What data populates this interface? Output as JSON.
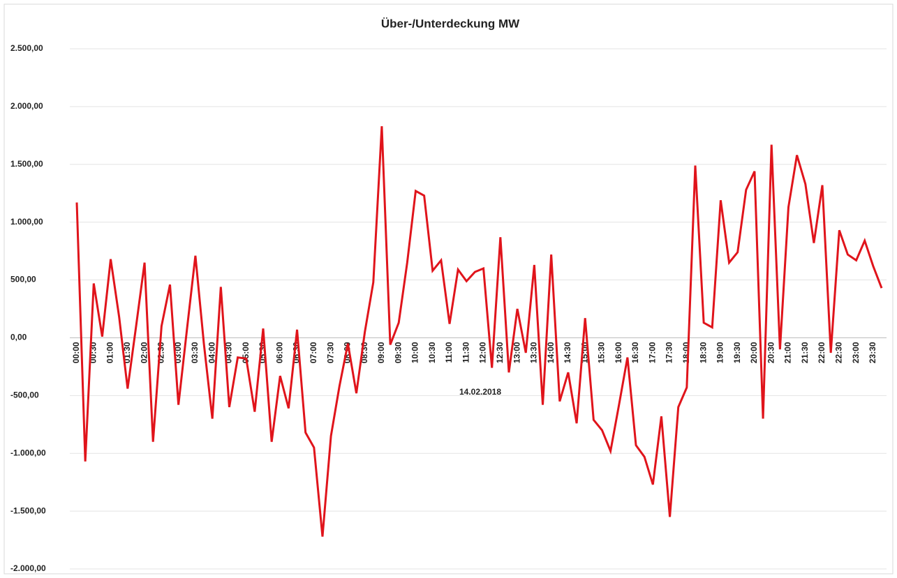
{
  "chart_data": {
    "type": "line",
    "title": "Über-/Unterdeckung  MW",
    "x_label": "14.02.2018",
    "categories": [
      "00:00",
      null,
      "00:30",
      null,
      "01:00",
      null,
      "01:30",
      null,
      "02:00",
      null,
      "02:30",
      null,
      "03:00",
      null,
      "03:30",
      null,
      "04:00",
      null,
      "04:30",
      null,
      "05:00",
      null,
      "05:30",
      null,
      "06:00",
      null,
      "06:30",
      null,
      "07:00",
      null,
      "07:30",
      null,
      "08:00",
      null,
      "08:30",
      null,
      "09:00",
      null,
      "09:30",
      null,
      "10:00",
      null,
      "10:30",
      null,
      "11:00",
      null,
      "11:30",
      null,
      "12:00",
      null,
      "12:30",
      null,
      "13:00",
      null,
      "13:30",
      null,
      "14:00",
      null,
      "14:30",
      null,
      "15:00",
      null,
      "15:30",
      null,
      "16:00",
      null,
      "16:30",
      null,
      "17:00",
      null,
      "17:30",
      null,
      "18:00",
      null,
      "18:30",
      null,
      "19:00",
      null,
      "19:30",
      null,
      "20:00",
      null,
      "20:30",
      null,
      "21:00",
      null,
      "21:30",
      null,
      "22:00",
      null,
      "22:30",
      null,
      "23:00",
      null,
      "23:30",
      null
    ],
    "values": [
      1170,
      -1070,
      470,
      10,
      680,
      180,
      -440,
      100,
      650,
      -900,
      100,
      460,
      -580,
      70,
      710,
      -50,
      -700,
      440,
      -600,
      -170,
      -180,
      -640,
      80,
      -900,
      -330,
      -610,
      70,
      -820,
      -950,
      -1720,
      -850,
      -420,
      -50,
      -480,
      50,
      480,
      1830,
      -60,
      130,
      650,
      1270,
      1230,
      580,
      670,
      120,
      590,
      490,
      570,
      600,
      -260,
      870,
      -300,
      250,
      -130,
      630,
      -580,
      720,
      -550,
      -300,
      -740,
      170,
      -710,
      -800,
      -980,
      -580,
      -170,
      -930,
      -1030,
      -1270,
      -680,
      -1550,
      -600,
      -430,
      1490,
      130,
      90,
      1190,
      650,
      740,
      1280,
      1440,
      -700,
      1670,
      -100,
      1130,
      1580,
      1330,
      820,
      1320,
      -130,
      930,
      720,
      670,
      840,
      620,
      430
    ],
    "color": "#e0141b",
    "ylim": [
      -2000,
      2500
    ],
    "yticks": [
      {
        "value": -2000,
        "label": "-2.000,00"
      },
      {
        "value": -1500,
        "label": "-1.500,00"
      },
      {
        "value": -1000,
        "label": "-1.000,00"
      },
      {
        "value": -500,
        "label": "-500,00"
      },
      {
        "value": 0,
        "label": "0,00"
      },
      {
        "value": 500,
        "label": "500,00"
      },
      {
        "value": 1000,
        "label": "1.000,00"
      },
      {
        "value": 1500,
        "label": "1.500,00"
      },
      {
        "value": 2000,
        "label": "2.000,00"
      },
      {
        "value": 2500,
        "label": "2.500,00"
      }
    ],
    "grid": true
  }
}
